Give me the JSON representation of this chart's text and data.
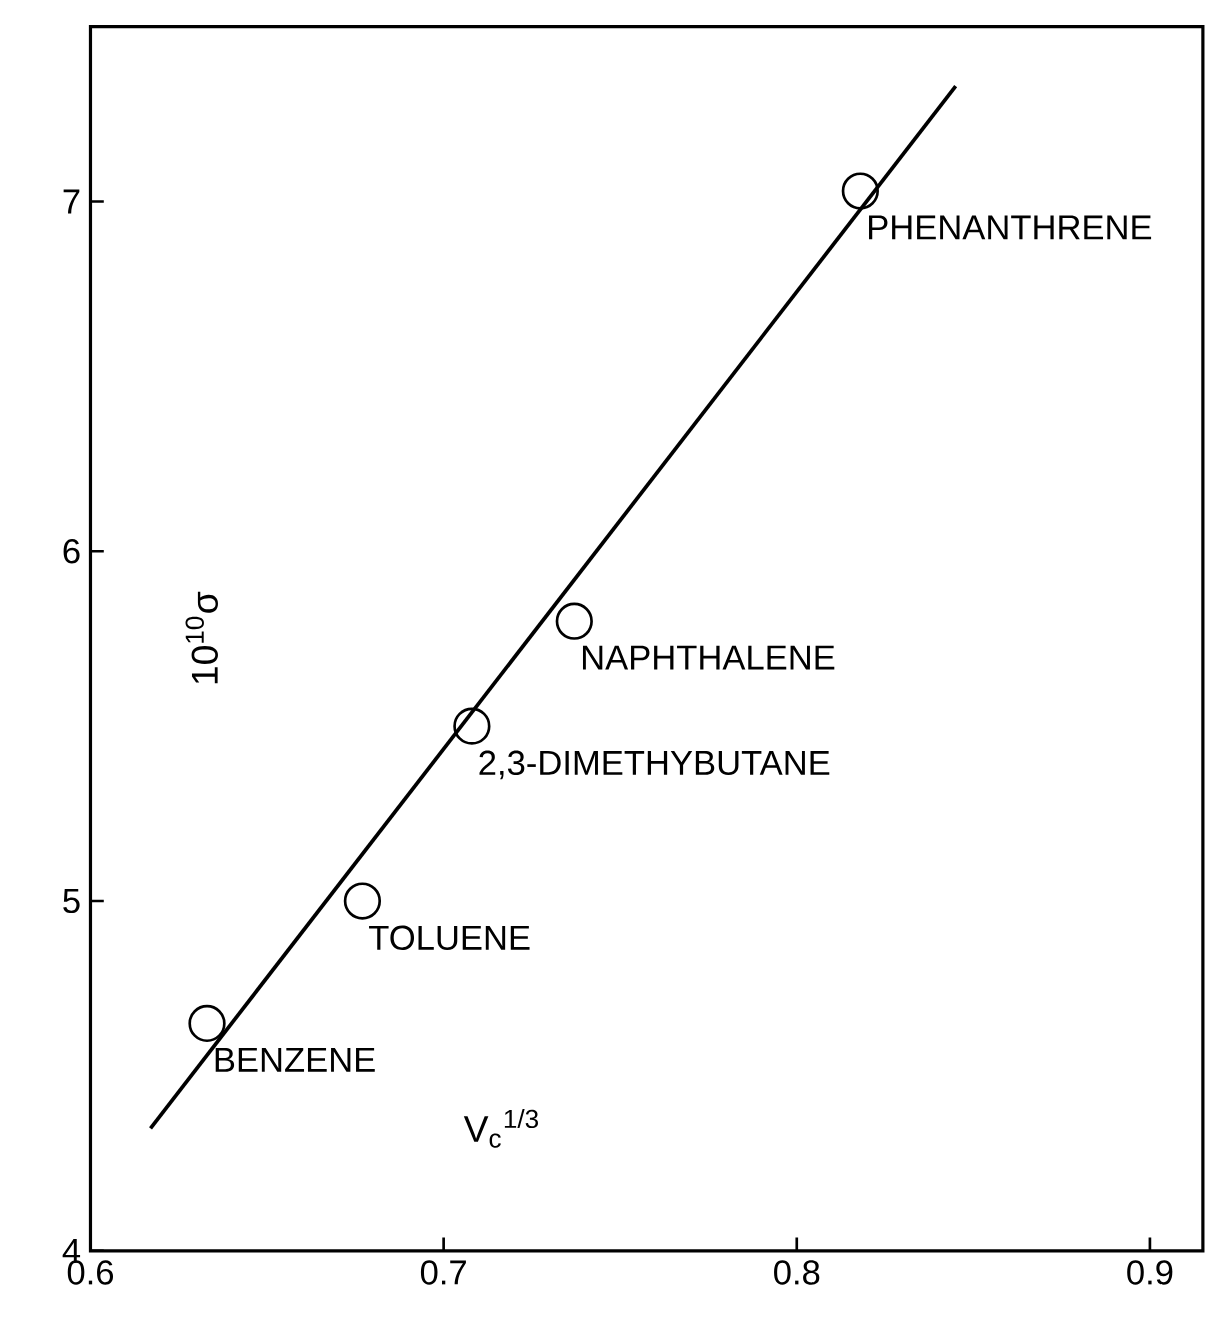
{
  "chart_data": {
    "type": "scatter",
    "xlabel": "V$_{c}$$^{1/3}$",
    "ylabel": "10$^{10}$σ",
    "xlim": [
      0.6,
      0.915
    ],
    "ylim": [
      4,
      7.5
    ],
    "xticks": [
      0.6,
      0.7,
      0.8,
      0.9
    ],
    "yticks": [
      4,
      5,
      6,
      7
    ],
    "series": [
      {
        "color": "#000000",
        "marker": "circle",
        "x": [
          0.633,
          0.677,
          0.708,
          0.737,
          0.818
        ],
        "values": [
          4.65,
          5.0,
          5.5,
          5.8,
          7.03
        ]
      },
      {
        "type": "line",
        "color": "#000000",
        "marker": "none",
        "x": [
          0.617,
          0.845
        ],
        "values": [
          4.35,
          7.33
        ]
      }
    ],
    "annotations": [
      {
        "text": "BENZENE",
        "x": 0.633,
        "y": 4.65
      },
      {
        "text": "TOLUENE",
        "x": 0.677,
        "y": 5.0
      },
      {
        "text": "2,3-DIMETHYBUTANE",
        "x": 0.708,
        "y": 5.5
      },
      {
        "text": "NAPHTHALENE",
        "x": 0.737,
        "y": 5.8
      },
      {
        "text": "PHENANTHRENE",
        "x": 0.818,
        "y": 7.03
      }
    ]
  }
}
